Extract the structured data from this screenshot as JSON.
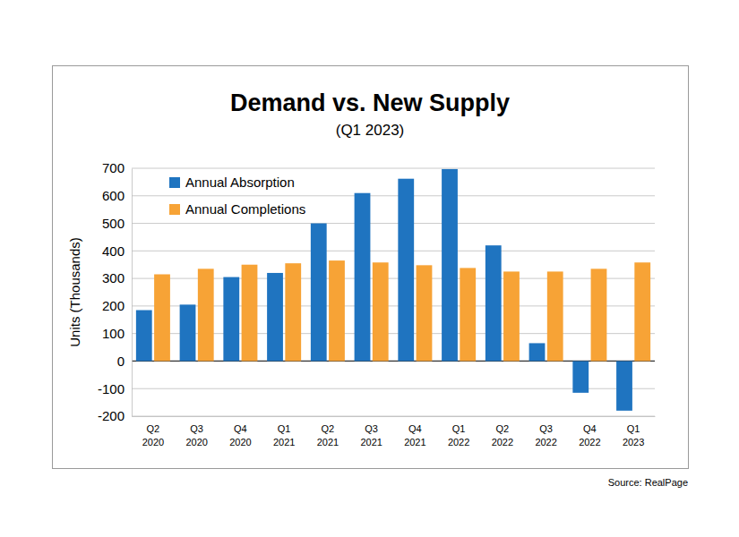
{
  "chart_data": {
    "type": "bar",
    "title": "Demand vs. New Supply",
    "subtitle": "(Q1 2023)",
    "y_label": "Units (Thousands)",
    "source": "Source: RealPage",
    "categories": [
      "Q2 2020",
      "Q3 2020",
      "Q4 2020",
      "Q1 2021",
      "Q2 2021",
      "Q3 2021",
      "Q4 2021",
      "Q1 2022",
      "Q2 2022",
      "Q3 2022",
      "Q4 2022",
      "Q1 2023"
    ],
    "series": [
      {
        "name": "Annual Absorption",
        "color": "#1f74c0",
        "values": [
          185,
          205,
          305,
          320,
          500,
          610,
          662,
          697,
          420,
          65,
          -115,
          -180
        ]
      },
      {
        "name": "Annual Completions",
        "color": "#f7a336",
        "values": [
          315,
          335,
          350,
          355,
          365,
          358,
          348,
          338,
          325,
          325,
          335,
          358
        ]
      }
    ],
    "ylim": [
      -200,
      700
    ],
    "yticks": [
      -200,
      -100,
      0,
      100,
      200,
      300,
      400,
      500,
      600,
      700
    ],
    "grid": true,
    "legend": "upper left"
  }
}
